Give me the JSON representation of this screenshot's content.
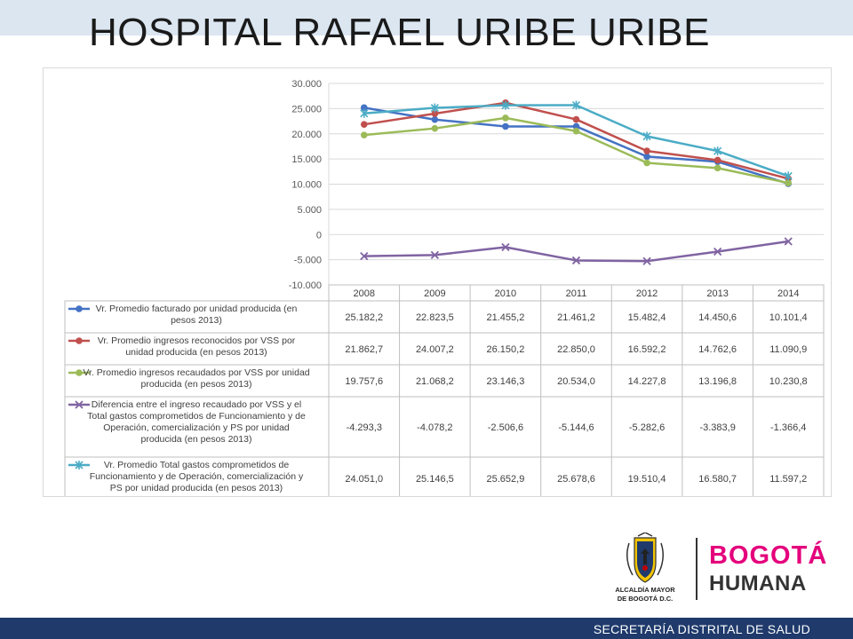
{
  "slide": {
    "title": "HOSPITAL RAFAEL URIBE URIBE",
    "footer": "SECRETARÍA DISTRITAL DE SALUD"
  },
  "logos": {
    "alcaldia_line1": "ALCALDÍA MAYOR",
    "alcaldia_line2": "DE BOGOTÁ D.C.",
    "bogota_word": "BOGOTÁ",
    "humana_word": "HUMANA"
  },
  "chart_data": {
    "type": "line",
    "categories": [
      "2008",
      "2009",
      "2010",
      "2011",
      "2012",
      "2013",
      "2014"
    ],
    "ylim": [
      -10000,
      30000
    ],
    "ytick_values": [
      30000,
      25000,
      20000,
      15000,
      10000,
      5000,
      0,
      -5000,
      -10000
    ],
    "ytick_labels": [
      "30.000",
      "25.000",
      "20.000",
      "15.000",
      "10.000",
      "5.000",
      "0",
      "-5.000",
      "-10.000"
    ],
    "grid": true,
    "legend": "data-table",
    "series": [
      {
        "name": "Vr. Promedio facturado por unidad producida (en pesos 2013)",
        "name_lines": [
          "Vr. Promedio facturado por unidad producida (en",
          "pesos 2013)"
        ],
        "color": "#4472c4",
        "marker": "circle",
        "values": [
          25182.2,
          22823.5,
          21455.2,
          21461.2,
          15482.4,
          14450.6,
          10101.4
        ],
        "labels": [
          "25.182,2",
          "22.823,5",
          "21.455,2",
          "21.461,2",
          "15.482,4",
          "14.450,6",
          "10.101,4"
        ]
      },
      {
        "name": "Vr. Promedio ingresos reconocidos por VSS por unidad producida (en pesos 2013)",
        "name_lines": [
          "Vr. Promedio ingresos reconocidos por VSS por",
          "unidad producida (en pesos 2013)"
        ],
        "color": "#c0504d",
        "marker": "circle",
        "values": [
          21862.7,
          24007.2,
          26150.2,
          22850.0,
          16592.2,
          14762.6,
          11090.9
        ],
        "labels": [
          "21.862,7",
          "24.007,2",
          "26.150,2",
          "22.850,0",
          "16.592,2",
          "14.762,6",
          "11.090,9"
        ]
      },
      {
        "name": "Vr. Promedio ingresos recaudados por VSS por unidad producida (en pesos 2013)",
        "name_lines": [
          "Vr. Promedio ingresos recaudados por VSS por unidad",
          "producida (en pesos 2013)"
        ],
        "color": "#9bbb59",
        "marker": "circle",
        "values": [
          19757.6,
          21068.2,
          23146.3,
          20534.0,
          14227.8,
          13196.8,
          10230.8
        ],
        "labels": [
          "19.757,6",
          "21.068,2",
          "23.146,3",
          "20.534,0",
          "14.227,8",
          "13.196,8",
          "10.230,8"
        ]
      },
      {
        "name": "Diferencia entre el ingreso recaudado por VSS y el Total gastos comprometidos de Funcionamiento y de Operación, comercialización y PS por unidad producida (en pesos 2013)",
        "name_lines": [
          "Diferencia entre el ingreso recaudado por VSS y el",
          "Total gastos comprometidos de Funcionamiento y de",
          "Operación, comercialización y PS por unidad",
          "producida (en pesos 2013)"
        ],
        "color": "#8064a2",
        "marker": "x",
        "values": [
          -4293.3,
          -4078.2,
          -2506.6,
          -5144.6,
          -5282.6,
          -3383.9,
          -1366.4
        ],
        "labels": [
          "-4.293,3",
          "-4.078,2",
          "-2.506,6",
          "-5.144,6",
          "-5.282,6",
          "-3.383,9",
          "-1.366,4"
        ]
      },
      {
        "name": "Vr. Promedio Total gastos comprometidos de Funcionamiento y de Operación, comercialización y PS por unidad producida (en pesos 2013)",
        "name_lines": [
          "Vr. Promedio Total gastos comprometidos de",
          "Funcionamiento y de Operación, comercialización y",
          "PS por unidad producida (en pesos 2013)"
        ],
        "color": "#4bacc6",
        "marker": "star",
        "values": [
          24051.0,
          25146.5,
          25652.9,
          25678.6,
          19510.4,
          16580.7,
          11597.2
        ],
        "labels": [
          "24.051,0",
          "25.146,5",
          "25.652,9",
          "25.678,6",
          "19.510,4",
          "16.580,7",
          "11.597,2"
        ]
      }
    ]
  }
}
